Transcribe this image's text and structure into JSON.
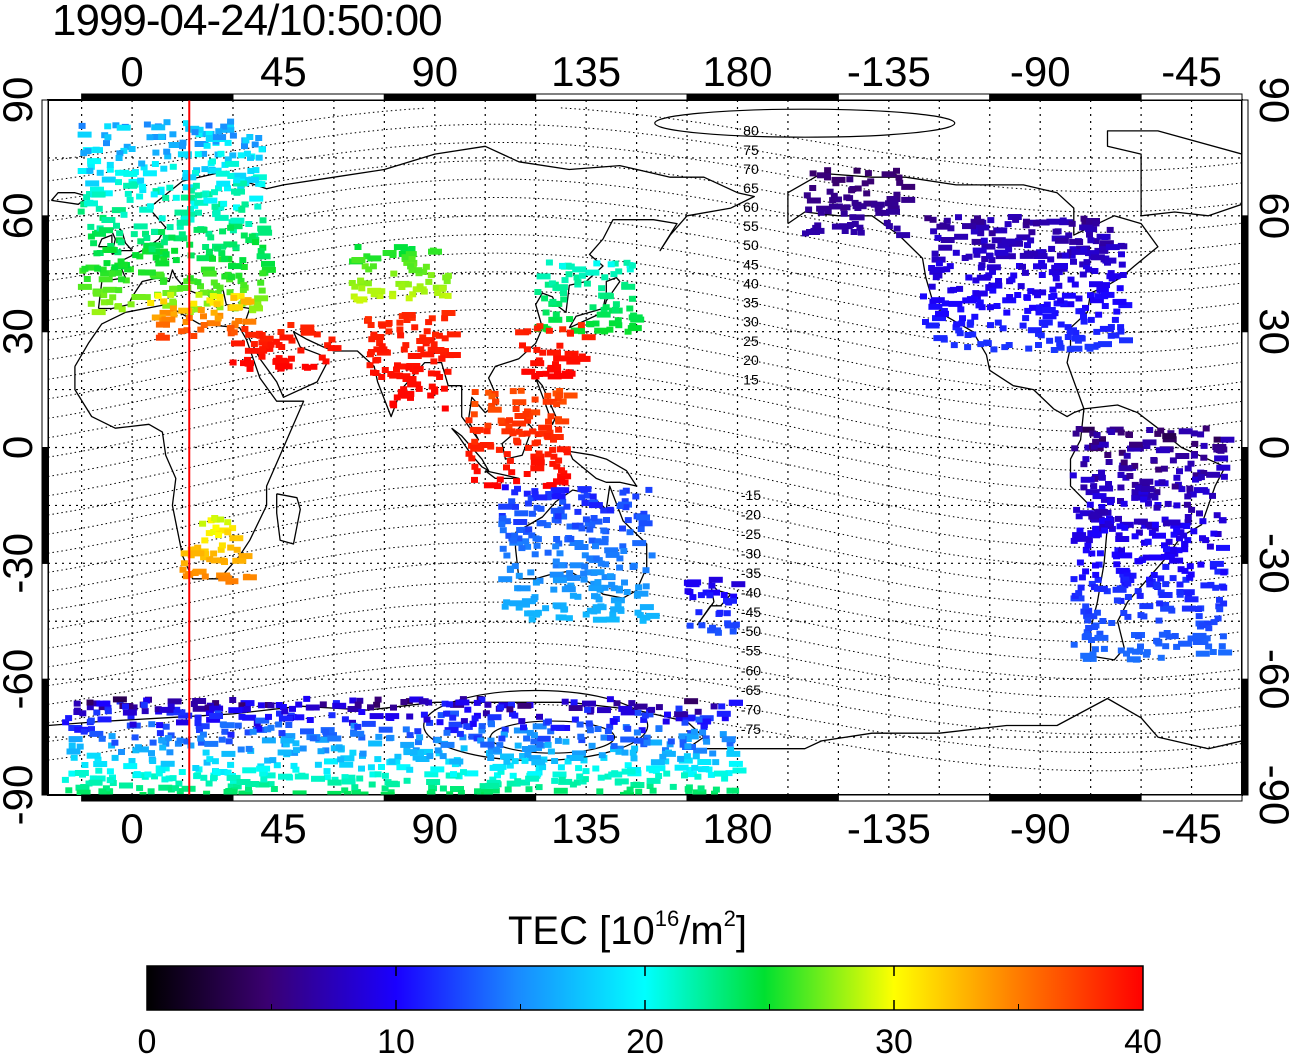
{
  "title": "1999-04-24/10:50:00",
  "axes": {
    "top_lon_labels": [
      "0",
      "45",
      "90",
      "135",
      "180",
      "-135",
      "-90",
      "-45"
    ],
    "bottom_lon_labels": [
      "0",
      "45",
      "90",
      "135",
      "180",
      "-135",
      "-90",
      "-45"
    ],
    "left_lat_labels": [
      "90",
      "60",
      "30",
      "0",
      "-30",
      "-60",
      "-90"
    ],
    "right_lat_labels": [
      "90",
      "60",
      "30",
      "0",
      "-30",
      "-60",
      "-90"
    ]
  },
  "contours": {
    "north": [
      "80",
      "75",
      "70",
      "65",
      "60",
      "55",
      "50",
      "45",
      "40",
      "35",
      "30",
      "25",
      "20",
      "15"
    ],
    "south": [
      "-15",
      "-20",
      "-25",
      "-30",
      "-35",
      "-40",
      "-45",
      "-50",
      "-55",
      "-60",
      "-65",
      "-70",
      "-75"
    ]
  },
  "colorbar": {
    "title_prefix": "TEC  [10",
    "title_exp": "16",
    "title_mid": "/m",
    "title_exp2": "2",
    "title_suffix": "]",
    "tick_labels": [
      "0",
      "10",
      "20",
      "30",
      "40"
    ],
    "range": [
      0,
      40
    ]
  },
  "map_data": {
    "projection": "equirectangular",
    "lon_range": [
      -25,
      330
    ],
    "lat_range": [
      -90,
      90
    ],
    "terminator_lon": 17,
    "tec_clusters": [
      {
        "region": "Europe",
        "lon": [
          -15,
          40
        ],
        "lat": [
          35,
          85
        ],
        "tec": [
          13,
          28
        ]
      },
      {
        "region": "Mediterranean / N Africa",
        "lon": [
          5,
          35
        ],
        "lat": [
          28,
          40
        ],
        "tec": [
          28,
          38
        ]
      },
      {
        "region": "Middle East / Arabia",
        "lon": [
          30,
          60
        ],
        "lat": [
          20,
          32
        ],
        "tec": [
          38,
          40
        ]
      },
      {
        "region": "Central Asia",
        "lon": [
          65,
          95
        ],
        "lat": [
          38,
          52
        ],
        "tec": [
          24,
          29
        ]
      },
      {
        "region": "India",
        "lon": [
          70,
          95
        ],
        "lat": [
          10,
          35
        ],
        "tec": [
          38,
          40
        ]
      },
      {
        "region": "Japan / Korea",
        "lon": [
          120,
          150
        ],
        "lat": [
          30,
          48
        ],
        "tec": [
          20,
          25
        ]
      },
      {
        "region": "China / Taiwan",
        "lon": [
          115,
          135
        ],
        "lat": [
          18,
          32
        ],
        "tec": [
          38,
          40
        ]
      },
      {
        "region": "SE Asia",
        "lon": [
          100,
          130
        ],
        "lat": [
          -10,
          15
        ],
        "tec": [
          36,
          40
        ]
      },
      {
        "region": "Australia",
        "lon": [
          110,
          155
        ],
        "lat": [
          -45,
          -10
        ],
        "tec": [
          10,
          17
        ]
      },
      {
        "region": "New Zealand",
        "lon": [
          165,
          180
        ],
        "lat": [
          -48,
          -34
        ],
        "tec": [
          8,
          13
        ]
      },
      {
        "region": "Southern Africa",
        "lon": [
          15,
          35
        ],
        "lat": [
          -35,
          -18
        ],
        "tec": [
          28,
          35
        ]
      },
      {
        "region": "Alaska",
        "lon": [
          -160,
          -130
        ],
        "lat": [
          55,
          72
        ],
        "tec": [
          4,
          7
        ]
      },
      {
        "region": "North America",
        "lon": [
          -125,
          -65
        ],
        "lat": [
          25,
          60
        ],
        "tec": [
          5,
          12
        ]
      },
      {
        "region": "South America",
        "lon": [
          -80,
          -35
        ],
        "lat": [
          -55,
          5
        ],
        "tec": [
          3,
          14
        ]
      },
      {
        "region": "Antarctica",
        "lon": [
          -20,
          180
        ],
        "lat": [
          -90,
          -65
        ],
        "tec": [
          3,
          24
        ]
      }
    ]
  }
}
